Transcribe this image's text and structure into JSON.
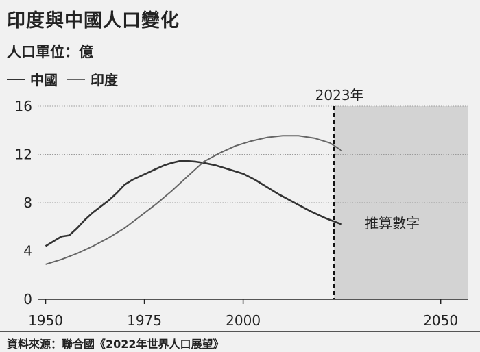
{
  "title": "印度與中國人口變化",
  "subtitle": "人口單位：億",
  "legend": [
    {
      "label": "中國",
      "color": "#333333"
    },
    {
      "label": "印度",
      "color": "#666666"
    }
  ],
  "source": "資料來源：聯合國《2022年世界人口展望》",
  "chart_data": {
    "type": "line",
    "title": "印度與中國人口變化",
    "ylabel": "人口單位：億",
    "xlabel": "",
    "xlim": [
      1948,
      2057
    ],
    "ylim": [
      0,
      16
    ],
    "x_ticks": [
      1950,
      1975,
      2000,
      2050
    ],
    "y_ticks": [
      0,
      4,
      8,
      12,
      16
    ],
    "grid": true,
    "legend_position": "top-left",
    "projection_marker": {
      "x": 2023,
      "label": "2023年"
    },
    "projection_label": "推算數字",
    "series": [
      {
        "name": "中國",
        "color": "#333333",
        "points": [
          [
            1950,
            4.4
          ],
          [
            1952,
            4.8
          ],
          [
            1954,
            5.2
          ],
          [
            1956,
            5.3
          ],
          [
            1958,
            5.9
          ],
          [
            1960,
            6.6
          ],
          [
            1962,
            7.2
          ],
          [
            1964,
            7.7
          ],
          [
            1966,
            8.2
          ],
          [
            1968,
            8.8
          ],
          [
            1970,
            9.5
          ],
          [
            1972,
            9.9
          ],
          [
            1974,
            10.2
          ],
          [
            1976,
            10.5
          ],
          [
            1978,
            10.8
          ],
          [
            1980,
            11.1
          ],
          [
            1982,
            11.3
          ],
          [
            1984,
            11.45
          ],
          [
            1986,
            11.45
          ],
          [
            1988,
            11.4
          ],
          [
            1990,
            11.3
          ],
          [
            1993,
            11.1
          ],
          [
            1996,
            10.8
          ],
          [
            2000,
            10.4
          ],
          [
            2003,
            9.9
          ],
          [
            2006,
            9.3
          ],
          [
            2009,
            8.7
          ],
          [
            2013,
            8.0
          ],
          [
            2017,
            7.3
          ],
          [
            2021,
            6.7
          ],
          [
            2025,
            6.2
          ]
        ]
      },
      {
        "name": "印度",
        "color": "#666666",
        "points": [
          [
            1950,
            2.9
          ],
          [
            1954,
            3.3
          ],
          [
            1958,
            3.8
          ],
          [
            1962,
            4.4
          ],
          [
            1966,
            5.1
          ],
          [
            1970,
            5.9
          ],
          [
            1974,
            6.9
          ],
          [
            1978,
            7.9
          ],
          [
            1982,
            9.0
          ],
          [
            1986,
            10.2
          ],
          [
            1990,
            11.4
          ],
          [
            1994,
            12.1
          ],
          [
            1998,
            12.7
          ],
          [
            2002,
            13.1
          ],
          [
            2006,
            13.4
          ],
          [
            2010,
            13.55
          ],
          [
            2014,
            13.55
          ],
          [
            2018,
            13.35
          ],
          [
            2022,
            12.95
          ],
          [
            2025,
            12.3
          ]
        ]
      }
    ]
  }
}
